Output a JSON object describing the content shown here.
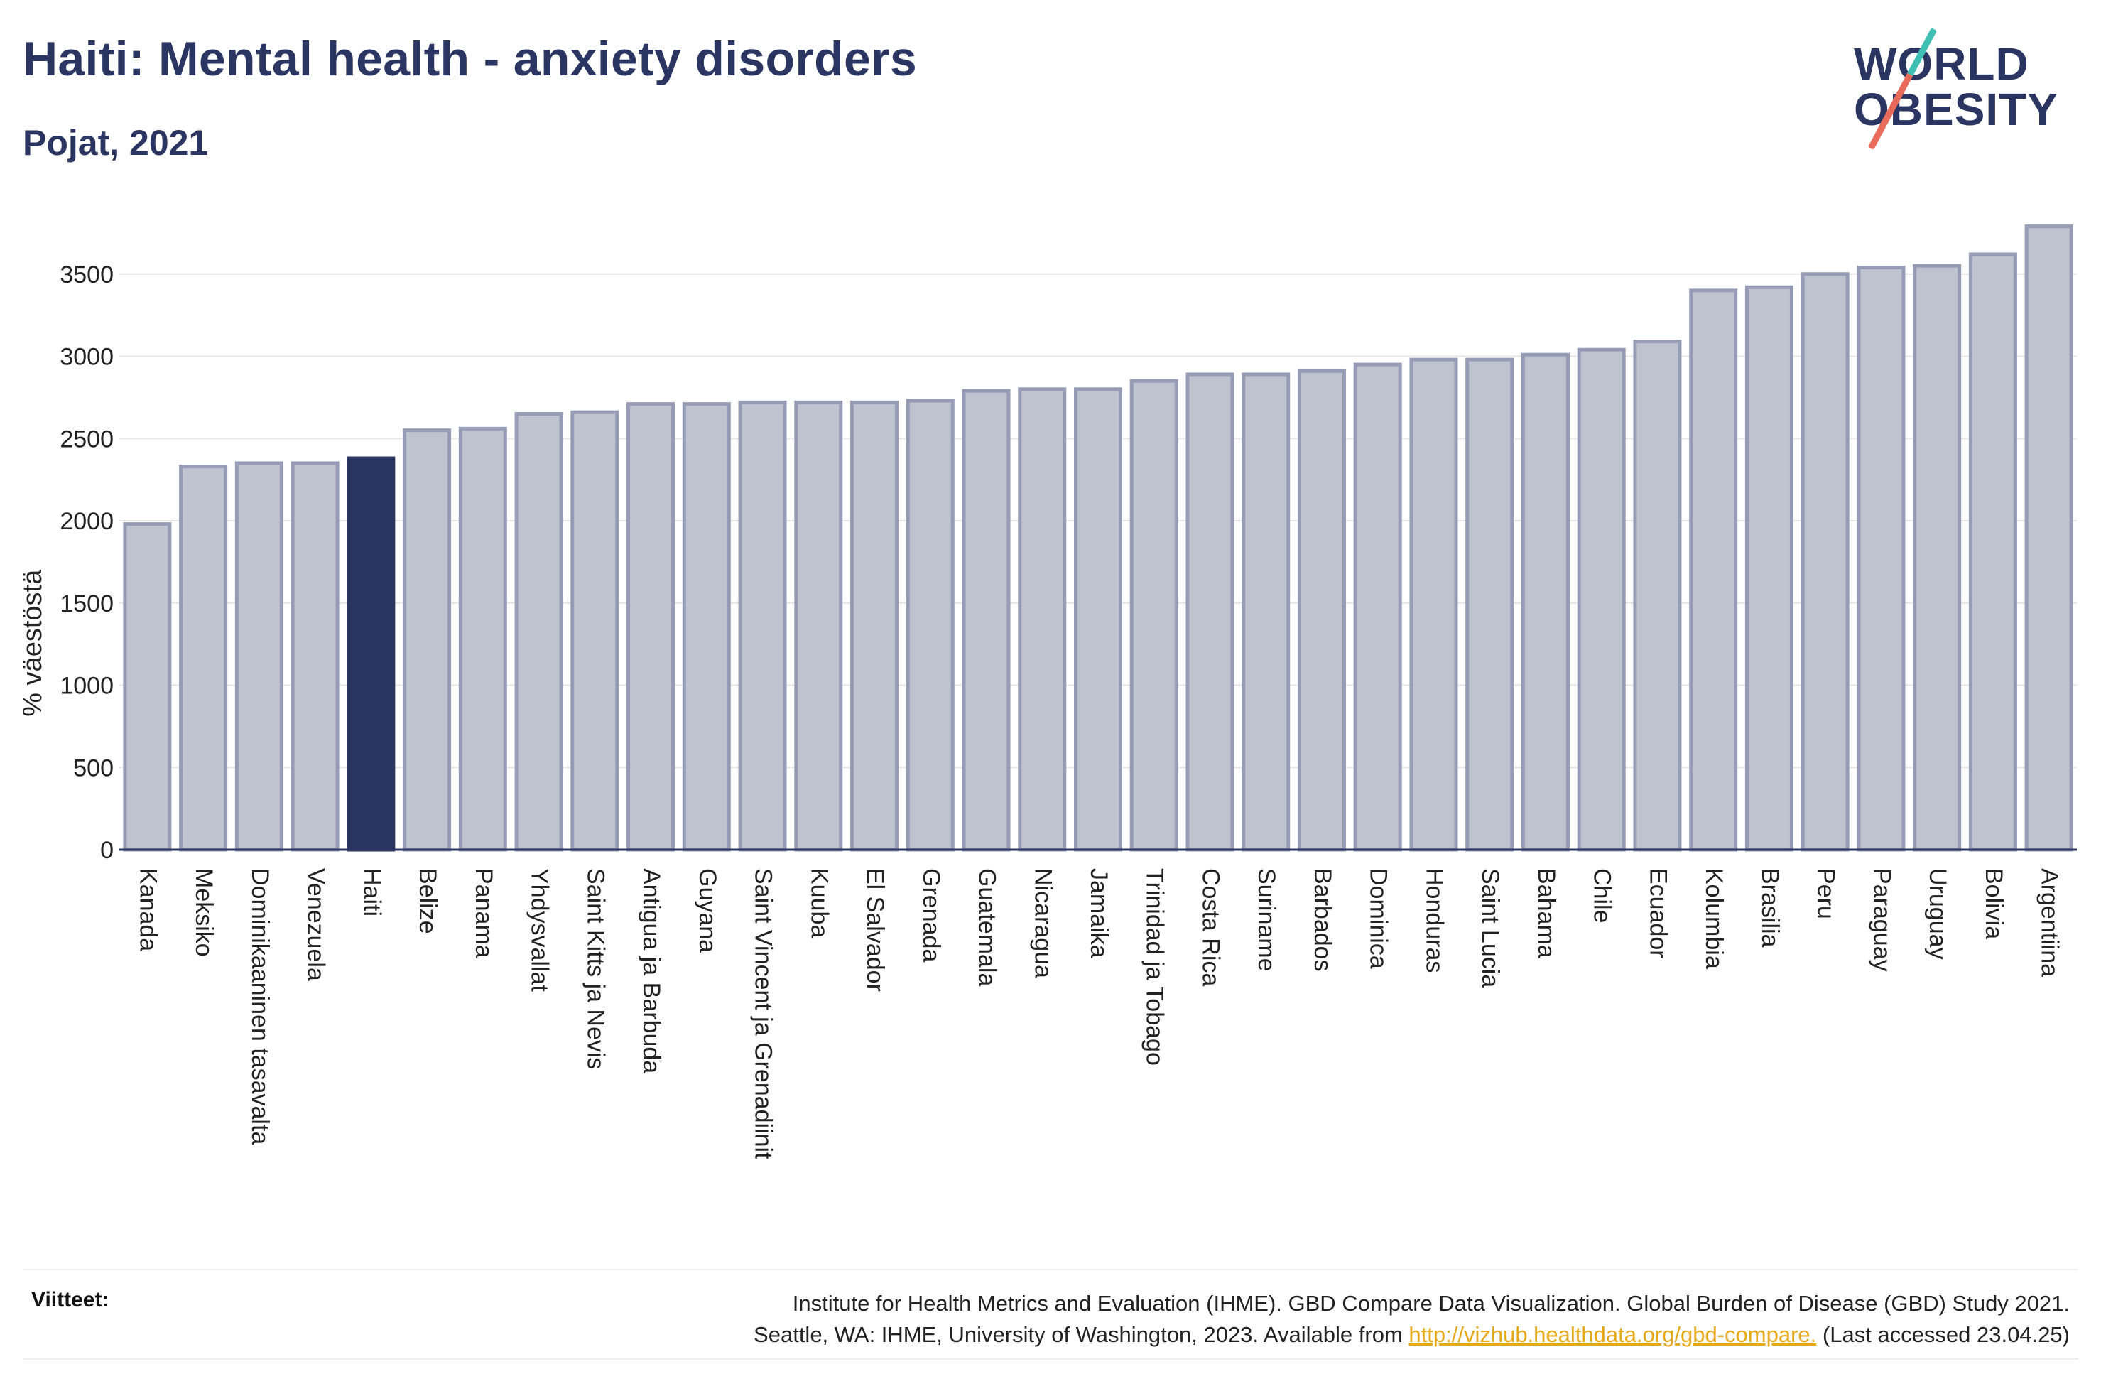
{
  "header": {
    "title": "Haiti: Mental health - anxiety disorders",
    "subtitle": "Pojat, 2021"
  },
  "logo": {
    "line1": "WORLD",
    "line2": "OBESITY",
    "colors": {
      "teal": "#3fbfb3",
      "coral": "#e86b5b",
      "navy": "#2b3561"
    }
  },
  "chart_data": {
    "type": "bar",
    "title": "Haiti: Mental health - anxiety disorders",
    "subtitle": "Pojat, 2021",
    "xlabel": "",
    "ylabel": "% väestöstä",
    "ylim": [
      0,
      3800
    ],
    "yticks": [
      0,
      500,
      1000,
      1500,
      2000,
      2500,
      3000,
      3500
    ],
    "grid": true,
    "highlight": "Haiti",
    "colors": {
      "bar": "#bfc2cf",
      "bar_border": "#969cb5",
      "highlight": "#2b3561"
    },
    "categories": [
      "Kanada",
      "Meksiko",
      "Dominikaaninen tasavalta",
      "Venezuela",
      "Haiti",
      "Belize",
      "Panama",
      "Yhdysvallat",
      "Saint Kitts ja Nevis",
      "Antigua ja Barbuda",
      "Guyana",
      "Saint Vincent ja Grenadiinit",
      "Kuuba",
      "El Salvador",
      "Grenada",
      "Guatemala",
      "Nicaragua",
      "Jamaika",
      "Trinidad ja Tobago",
      "Costa Rica",
      "Suriname",
      "Barbados",
      "Dominica",
      "Honduras",
      "Saint Lucia",
      "Bahama",
      "Chile",
      "Ecuador",
      "Kolumbia",
      "Brasilia",
      "Peru",
      "Paraguay",
      "Uruguay",
      "Bolivia",
      "Argentiina"
    ],
    "values": [
      1980,
      2330,
      2350,
      2350,
      2380,
      2550,
      2560,
      2650,
      2660,
      2710,
      2710,
      2720,
      2720,
      2720,
      2730,
      2790,
      2800,
      2800,
      2850,
      2890,
      2890,
      2910,
      2950,
      2980,
      2980,
      3010,
      3040,
      3090,
      3400,
      3420,
      3500,
      3540,
      3550,
      3620,
      3790
    ]
  },
  "footer": {
    "refs_label": "Viitteet:",
    "refs_line1": "Institute for Health Metrics and Evaluation (IHME). GBD Compare Data Visualization. Global Burden of Disease (GBD) Study 2021.",
    "refs_line2_pre": "Seattle, WA: IHME, University of Washington, 2023. Available from ",
    "refs_link": "http://vizhub.healthdata.org/gbd-compare.",
    "refs_line2_post": " (Last accessed 23.04.25)"
  }
}
